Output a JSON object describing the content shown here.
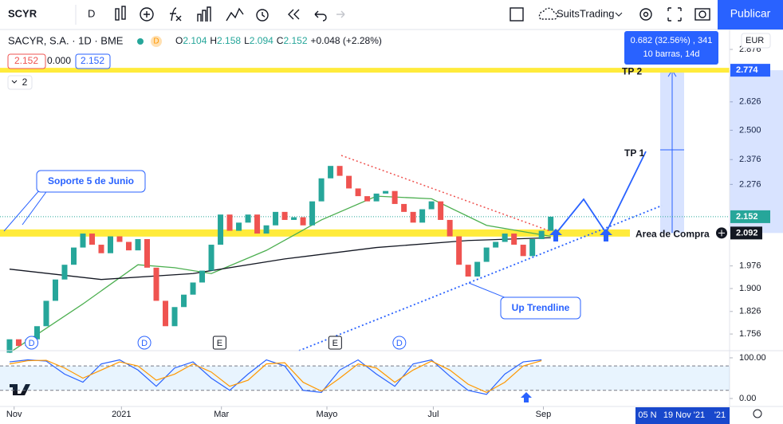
{
  "toolbar": {
    "symbol": "SCYR",
    "interval": "D",
    "account": "SuitsTrading",
    "publish": "Publicar"
  },
  "legend": {
    "title": "SACYR, S.A. · 1D · BME",
    "flag": "D",
    "ohlc": [
      "O",
      "2.104",
      "H",
      "2.158",
      "L",
      "2.094",
      "C",
      "2.152",
      "+0.048 (+2.28%)"
    ],
    "inputs": [
      "2.152",
      "0.000",
      "2.152"
    ],
    "collapse": "2"
  },
  "currency": "EUR",
  "chart_data": {
    "type": "candlestick",
    "log": true,
    "ylim": [
      1.706,
      2.977
    ],
    "yticks": [
      2.876,
      2.626,
      {
        "value": 2.5,
        "label": "2.500"
      },
      2.376,
      2.276,
      1.976,
      {
        "value": 1.9,
        "label": "1.900"
      },
      1.826,
      1.756
    ],
    "xlim": [
      -1.04,
      78.5
    ],
    "xticks": [
      {
        "value": 0.5,
        "label": "Nov"
      },
      {
        "value": 12.2,
        "label": "2021"
      },
      {
        "value": 23.1,
        "label": "Mar"
      },
      {
        "value": 34.6,
        "label": "Mayo"
      },
      {
        "value": 46.2,
        "label": "Jul"
      },
      {
        "value": 58.2,
        "label": "Sep"
      }
    ],
    "up_color": "#26a69a",
    "down_color": "#ef5350",
    "open": [
      1.7,
      1.74,
      1.72,
      1.74,
      1.78,
      1.86,
      1.93,
      1.98,
      2.04,
      2.09,
      2.05,
      2.02,
      2.08,
      2.06,
      2.03,
      2.07,
      1.97,
      1.86,
      1.78,
      1.84,
      1.88,
      1.92,
      1.96,
      2.05,
      2.16,
      2.1,
      2.13,
      2.16,
      2.09,
      2.12,
      2.17,
      2.14,
      2.15,
      2.12,
      2.21,
      2.3,
      2.35,
      2.31,
      2.26,
      2.23,
      2.21,
      2.24,
      2.25,
      2.2,
      2.17,
      2.13,
      2.18,
      2.21,
      2.14,
      2.08,
      1.98,
      1.94,
      1.99,
      2.04,
      2.06,
      2.09,
      2.05,
      2.01,
      2.07,
      2.1
    ],
    "close": [
      1.74,
      1.72,
      1.74,
      1.78,
      1.86,
      1.93,
      1.98,
      2.04,
      2.09,
      2.05,
      2.02,
      2.08,
      2.06,
      2.03,
      2.07,
      1.97,
      1.86,
      1.78,
      1.84,
      1.88,
      1.92,
      1.96,
      2.05,
      2.16,
      2.1,
      2.13,
      2.16,
      2.09,
      2.12,
      2.17,
      2.14,
      2.15,
      2.12,
      2.21,
      2.3,
      2.35,
      2.31,
      2.26,
      2.23,
      2.21,
      2.24,
      2.25,
      2.2,
      2.17,
      2.13,
      2.18,
      2.21,
      2.14,
      2.08,
      1.98,
      1.94,
      1.99,
      2.04,
      2.06,
      2.09,
      2.05,
      2.01,
      2.07,
      2.1,
      2.152
    ],
    "moving_averages": [
      {
        "color": "#4caf50",
        "x": [
          0,
          8,
          14,
          18,
          22,
          28,
          34,
          40,
          46,
          52,
          59
        ],
        "values": [
          1.7,
          1.85,
          1.98,
          1.97,
          1.95,
          2.03,
          2.14,
          2.23,
          2.22,
          2.12,
          2.08
        ]
      },
      {
        "color": "#131722",
        "x": [
          0,
          10,
          20,
          30,
          40,
          50,
          59
        ],
        "values": [
          1.965,
          1.93,
          1.95,
          2.0,
          2.04,
          2.065,
          2.075
        ]
      }
    ],
    "levels": [
      {
        "label": "TP 2",
        "value": 2.774,
        "color": "#ffeb3b"
      },
      {
        "label": "Area de Compra",
        "value": 2.092,
        "color": "#ffeb3b"
      }
    ],
    "price_labels": [
      {
        "value": 2.774,
        "color": "#2962ff"
      },
      {
        "value": 2.152,
        "color": "#26a69a"
      },
      {
        "value": 2.092,
        "color": "#131722"
      }
    ],
    "events": [
      {
        "label": "D",
        "x": 2.4
      },
      {
        "label": "D",
        "x": 14.7
      },
      {
        "label": "E",
        "x": 22.9
      },
      {
        "label": "E",
        "x": 35.5
      },
      {
        "label": "D",
        "x": 42.5
      }
    ]
  },
  "annotations": {
    "support": "Soporte 5 de Junio",
    "trendline": "Up Trendline",
    "tp1": "TP 1"
  },
  "measure": [
    "0.682 (32.56%) , 341",
    "10 barras, 14d"
  ],
  "oscillator": {
    "ylim": [
      -19.6,
      117.6
    ],
    "yticks": [
      {
        "value": 100,
        "label": "100.00"
      },
      {
        "value": 0,
        "label": "0.00"
      }
    ],
    "bands": [
      80,
      20
    ],
    "x": [
      0,
      2,
      4,
      6,
      8,
      10,
      12,
      14,
      16,
      18,
      20,
      22,
      24,
      26,
      28,
      30,
      32,
      34,
      36,
      38,
      40,
      42,
      44,
      46,
      48,
      50,
      52,
      54,
      56,
      58
    ],
    "series": [
      {
        "color": "#2962ff",
        "values": [
          90,
          95,
          92,
          60,
          40,
          85,
          95,
          70,
          30,
          75,
          90,
          50,
          20,
          60,
          95,
          80,
          20,
          15,
          70,
          95,
          60,
          30,
          85,
          95,
          55,
          20,
          10,
          60,
          90,
          95
        ]
      },
      {
        "color": "#ff9800",
        "values": [
          85,
          93,
          94,
          75,
          50,
          70,
          90,
          80,
          45,
          60,
          85,
          65,
          30,
          45,
          85,
          88,
          40,
          18,
          50,
          85,
          75,
          40,
          70,
          92,
          70,
          35,
          15,
          40,
          80,
          93
        ]
      }
    ]
  },
  "time_axis": {
    "range": [
      "05 N",
      "19 Nov '21",
      "'21"
    ]
  }
}
